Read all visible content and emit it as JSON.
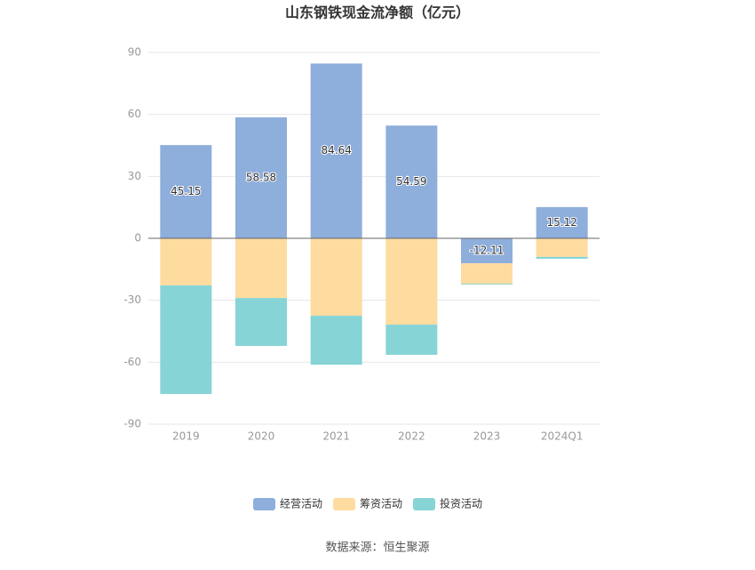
{
  "chart_data": {
    "type": "stacked_bar",
    "title": "山东钢铁现金流净额（亿元）",
    "categories": [
      "2019",
      "2020",
      "2021",
      "2022",
      "2023",
      "2024Q1"
    ],
    "series": [
      {
        "name": "经营活动",
        "color": "#8eaedb",
        "values": [
          45.15,
          58.58,
          84.64,
          54.59,
          -12.11,
          15.12
        ]
      },
      {
        "name": "筹资活动",
        "color": "#fedb9f",
        "values": [
          -22.8,
          -28.9,
          -37.5,
          -41.8,
          -9.9,
          -9.0
        ]
      },
      {
        "name": "投资活动",
        "color": "#87d4d6",
        "values": [
          -52.6,
          -23.2,
          -23.7,
          -14.6,
          -0.4,
          -0.9
        ]
      }
    ],
    "ylim": [
      -90,
      90
    ],
    "yticks": [
      -90,
      -60,
      -30,
      0,
      30,
      60,
      90
    ],
    "grid": true,
    "source": "数据来源：恒生聚源"
  }
}
